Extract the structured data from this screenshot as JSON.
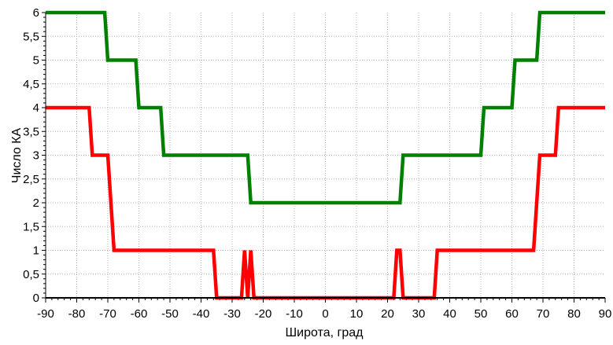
{
  "chart_data": {
    "type": "line",
    "title": "",
    "xlabel": "Широта, град",
    "ylabel": "Число КА",
    "xlim": [
      -90,
      90
    ],
    "ylim": [
      0,
      6
    ],
    "x_ticks": [
      -90,
      -80,
      -70,
      -60,
      -50,
      -40,
      -30,
      -20,
      -10,
      0,
      10,
      20,
      30,
      40,
      50,
      60,
      70,
      80,
      90
    ],
    "x_tick_labels": [
      "-90",
      "-80",
      "-70",
      "-60",
      "-50",
      "-40",
      "-30",
      "-20",
      "-10",
      "0",
      "10",
      "20",
      "30",
      "40",
      "50",
      "60",
      "70",
      "80",
      "90"
    ],
    "y_ticks": [
      0,
      0.5,
      1,
      1.5,
      2,
      2.5,
      3,
      3.5,
      4,
      4.5,
      5,
      5.5,
      6
    ],
    "y_tick_labels": [
      "0",
      "0,5",
      "1",
      "1,5",
      "2",
      "2,5",
      "3",
      "3,5",
      "4",
      "4,5",
      "5",
      "5,5",
      "6"
    ],
    "grid": true,
    "legend": false,
    "series": [
      {
        "color": "#008000",
        "x": [
          -90,
          -71,
          -70,
          -61,
          -60,
          -53,
          -52,
          -25,
          -24,
          24,
          25,
          50,
          51,
          60,
          61,
          68,
          69,
          90
        ],
        "y": [
          6,
          6,
          5,
          5,
          4,
          4,
          3,
          3,
          2,
          2,
          3,
          3,
          4,
          4,
          5,
          5,
          6,
          6
        ]
      },
      {
        "color": "#ff0000",
        "x": [
          -90,
          -76,
          -75,
          -70,
          -68,
          -36,
          -35,
          -27,
          -26,
          -25,
          -24,
          -23,
          -22,
          22,
          23,
          24,
          25,
          26,
          27,
          35,
          36,
          67,
          69,
          74,
          75,
          90
        ],
        "y": [
          4,
          4,
          3,
          3,
          1,
          1,
          0,
          0,
          1,
          0,
          1,
          0,
          0,
          0,
          1,
          1,
          0,
          0,
          0,
          0,
          1,
          1,
          3,
          3,
          4,
          4
        ]
      }
    ]
  }
}
